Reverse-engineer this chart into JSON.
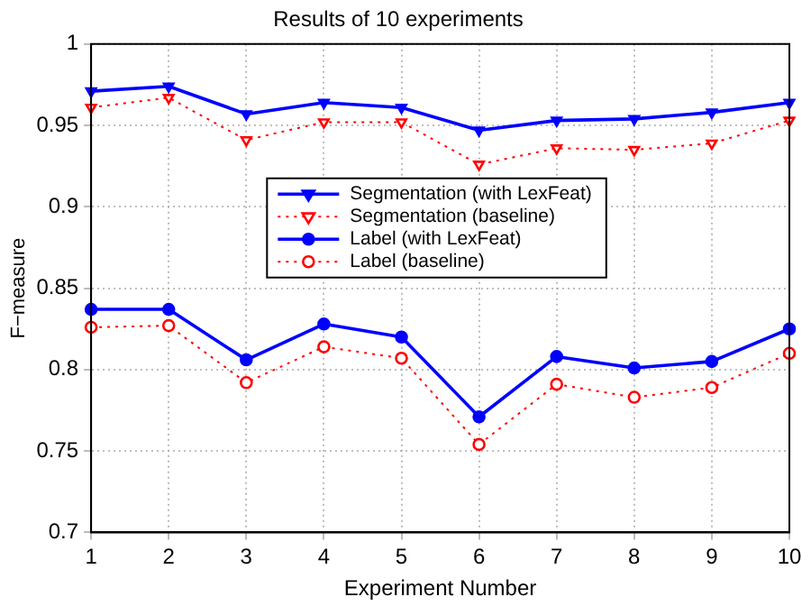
{
  "chart_data": {
    "type": "line",
    "title": "Results of 10 experiments",
    "xlabel": "Experiment Number",
    "ylabel": "F−measure",
    "x": [
      1,
      2,
      3,
      4,
      5,
      6,
      7,
      8,
      9,
      10
    ],
    "series": [
      {
        "name": "Segmentation (with LexFeat)",
        "color": "#0000ff",
        "marker": "triangle",
        "line_style": "solid",
        "values": [
          0.971,
          0.974,
          0.957,
          0.964,
          0.961,
          0.947,
          0.953,
          0.954,
          0.958,
          0.964
        ]
      },
      {
        "name": "Segmentation (baseline)",
        "color": "#ff0000",
        "marker": "triangle",
        "line_style": "dotted",
        "values": [
          0.961,
          0.967,
          0.941,
          0.952,
          0.952,
          0.926,
          0.936,
          0.935,
          0.939,
          0.953
        ]
      },
      {
        "name": "Label (with LexFeat)",
        "color": "#0000ff",
        "marker": "circle",
        "line_style": "solid",
        "values": [
          0.837,
          0.837,
          0.806,
          0.828,
          0.82,
          0.771,
          0.808,
          0.801,
          0.805,
          0.825
        ]
      },
      {
        "name": "Label (baseline)",
        "color": "#ff0000",
        "marker": "circle",
        "line_style": "dotted",
        "values": [
          0.826,
          0.827,
          0.792,
          0.814,
          0.807,
          0.754,
          0.791,
          0.783,
          0.789,
          0.81
        ]
      }
    ],
    "xlim": [
      1,
      10
    ],
    "xticks": [
      1,
      2,
      3,
      4,
      5,
      6,
      7,
      8,
      9,
      10
    ],
    "ylim": [
      0.7,
      1
    ],
    "yticks": [
      0.7,
      0.75,
      0.8,
      0.85,
      0.9,
      0.95,
      1
    ],
    "grid": true,
    "legend": "center"
  }
}
